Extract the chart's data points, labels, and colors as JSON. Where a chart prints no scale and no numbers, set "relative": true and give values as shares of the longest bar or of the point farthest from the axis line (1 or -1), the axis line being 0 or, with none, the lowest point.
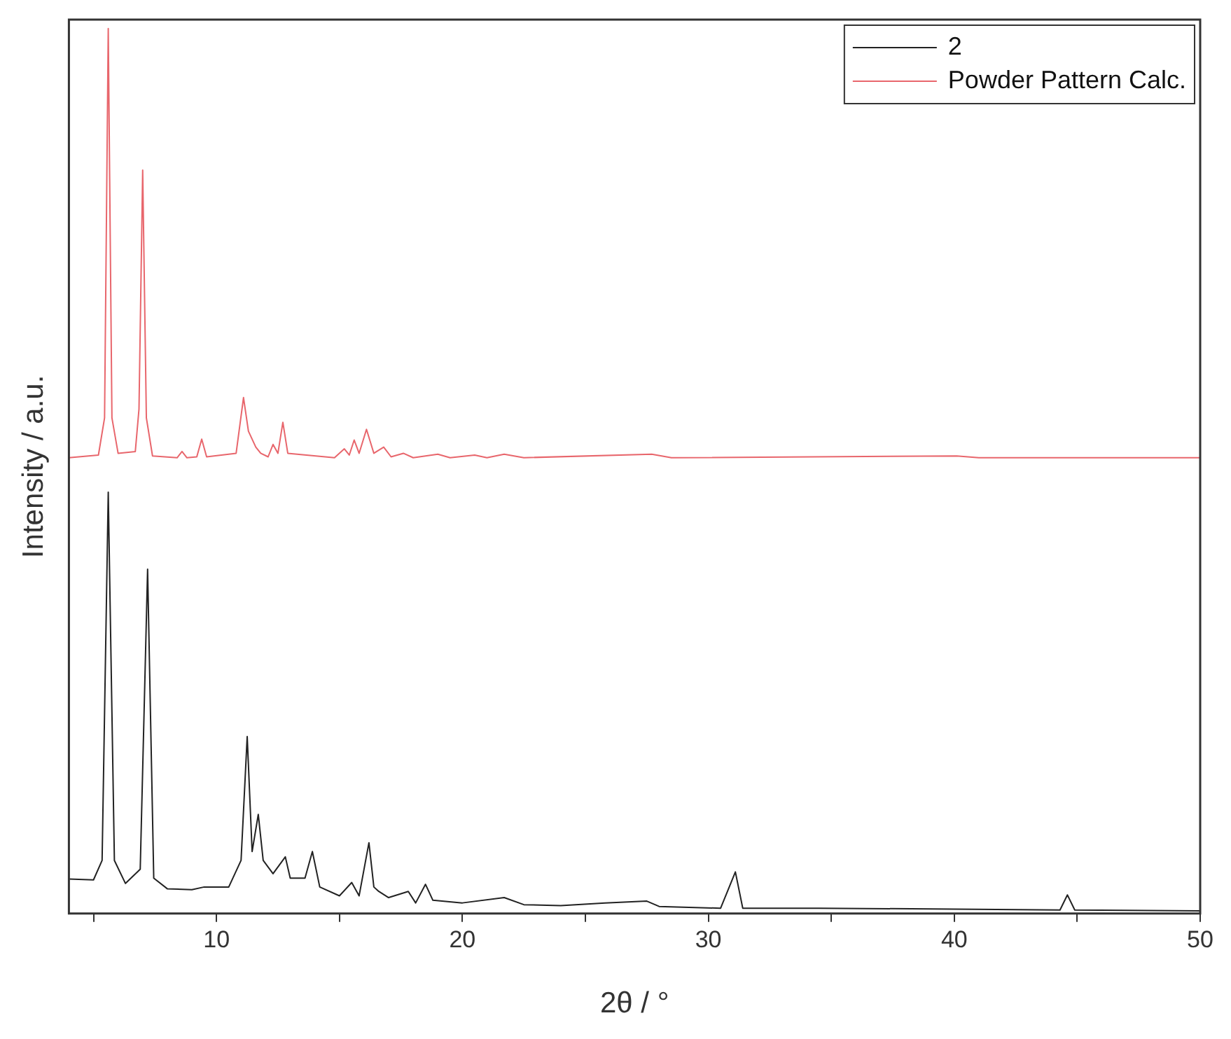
{
  "chart_data": {
    "type": "line",
    "relative": true,
    "xlabel": "2θ / °",
    "ylabel": "Intensity / a.u.",
    "xlim": [
      4,
      50
    ],
    "xticks": [
      {
        "value": 5,
        "label": null
      },
      10,
      {
        "value": 15,
        "label": null
      },
      20,
      {
        "value": 25,
        "label": null
      },
      30,
      {
        "value": 35,
        "label": null
      },
      40,
      {
        "value": 45,
        "label": null
      },
      50
    ],
    "grid": false,
    "legend": "top right",
    "marker": "none",
    "line_style": "solid",
    "series": [
      {
        "name": "2",
        "color": "#222222",
        "x": [
          4,
          5.0,
          5.35,
          5.6,
          5.85,
          6.3,
          6.9,
          7.2,
          7.45,
          8.0,
          9.0,
          9.5,
          10.5,
          11.0,
          11.25,
          11.45,
          11.7,
          11.9,
          12.3,
          12.8,
          13.0,
          13.6,
          13.9,
          14.2,
          15.0,
          15.5,
          15.8,
          16.2,
          16.4,
          16.6,
          17.0,
          17.8,
          18.1,
          18.5,
          18.8,
          20,
          21.7,
          22.5,
          24,
          25.8,
          27.5,
          28,
          30.5,
          31.1,
          31.4,
          34.5,
          40,
          44.3,
          44.6,
          44.9,
          50
        ],
        "values": [
          0.039,
          0.038,
          0.06,
          0.476,
          0.06,
          0.034,
          0.05,
          0.389,
          0.04,
          0.028,
          0.027,
          0.03,
          0.03,
          0.06,
          0.2,
          0.07,
          0.112,
          0.06,
          0.045,
          0.064,
          0.04,
          0.04,
          0.07,
          0.03,
          0.02,
          0.035,
          0.02,
          0.08,
          0.03,
          0.025,
          0.018,
          0.025,
          0.012,
          0.033,
          0.015,
          0.012,
          0.018,
          0.01,
          0.009,
          0.012,
          0.014,
          0.008,
          0.006,
          0.047,
          0.006,
          0.006,
          0.005,
          0.004,
          0.021,
          0.004,
          0.003
        ]
      },
      {
        "name": "Powder Pattern Calc.",
        "color": "#e8666c",
        "x": [
          4,
          5.2,
          5.45,
          5.6,
          5.75,
          6.0,
          6.7,
          6.85,
          7.0,
          7.15,
          7.4,
          8.4,
          8.6,
          8.8,
          9.2,
          9.4,
          9.6,
          10.8,
          11.1,
          11.3,
          11.6,
          11.8,
          12.1,
          12.3,
          12.5,
          12.7,
          12.9,
          14.8,
          15.2,
          15.4,
          15.6,
          15.8,
          16.1,
          16.4,
          16.8,
          17.1,
          17.6,
          18.0,
          19.0,
          19.5,
          20.5,
          21.0,
          21.7,
          22.5,
          27.7,
          28.5,
          40.1,
          41,
          50
        ],
        "values": [
          0.515,
          0.518,
          0.56,
          1.0,
          0.56,
          0.52,
          0.522,
          0.57,
          0.84,
          0.56,
          0.517,
          0.515,
          0.522,
          0.515,
          0.516,
          0.536,
          0.516,
          0.52,
          0.583,
          0.545,
          0.527,
          0.52,
          0.516,
          0.53,
          0.52,
          0.555,
          0.52,
          0.515,
          0.525,
          0.518,
          0.535,
          0.52,
          0.547,
          0.52,
          0.527,
          0.516,
          0.52,
          0.515,
          0.519,
          0.515,
          0.518,
          0.515,
          0.519,
          0.515,
          0.519,
          0.515,
          0.517,
          0.515,
          0.515
        ]
      }
    ]
  }
}
